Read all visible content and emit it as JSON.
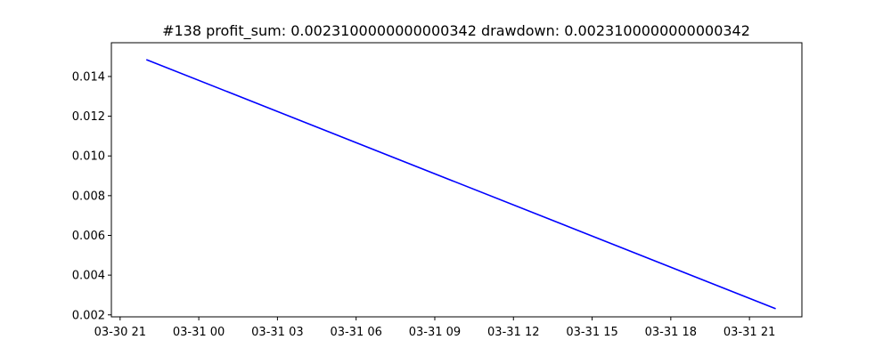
{
  "chart_data": {
    "type": "line",
    "title": "#138   profit_sum: 0.0023100000000000342 drawdown: 0.0023100000000000342",
    "xlabel": "",
    "ylabel": "",
    "x_axis_kind": "datetime",
    "x_tick_labels": [
      "03-30 21",
      "03-31 00",
      "03-31 03",
      "03-31 06",
      "03-31 09",
      "03-31 12",
      "03-31 15",
      "03-31 18",
      "03-31 21"
    ],
    "y_tick_labels": [
      "0.002",
      "0.004",
      "0.006",
      "0.008",
      "0.010",
      "0.012",
      "0.014"
    ],
    "ylim": [
      0.0019,
      0.0157
    ],
    "xlim": [
      "2024-03-30T20:40",
      "2024-03-31T23:00"
    ],
    "grid": false,
    "legend": "none",
    "series": [
      {
        "color": "#0000ff",
        "points": [
          {
            "x": "2024-03-30T22:00",
            "y": 0.01485
          },
          {
            "x": "2024-03-31T22:00",
            "y": 0.00231
          }
        ]
      }
    ]
  }
}
